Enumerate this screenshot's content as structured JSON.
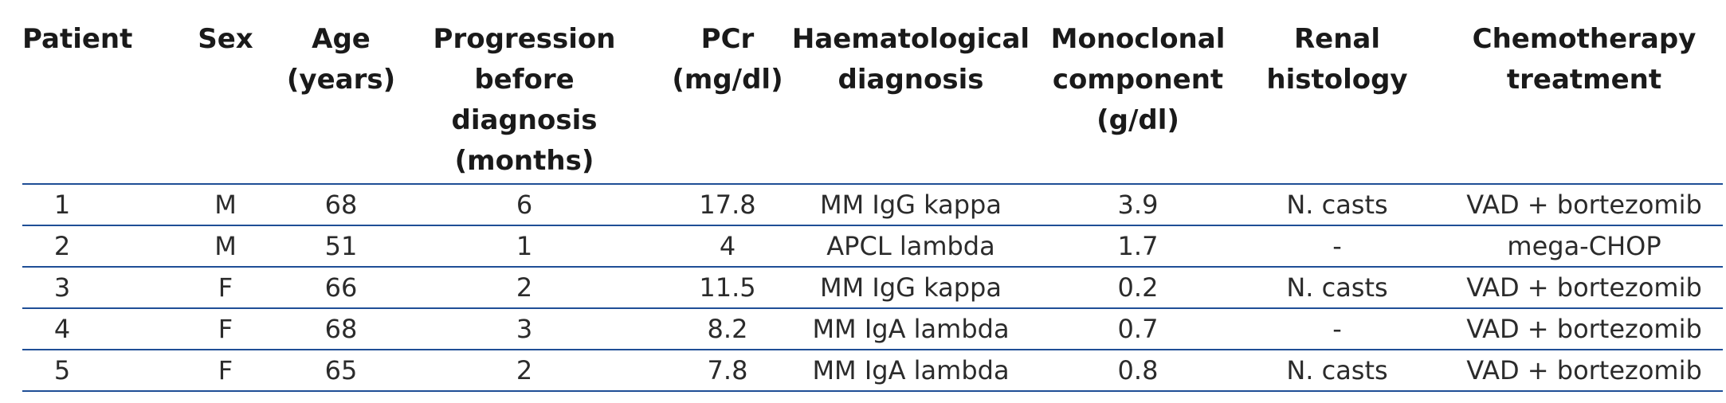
{
  "table": {
    "headers": {
      "patient": [
        "Patient"
      ],
      "sex": [
        "Sex"
      ],
      "age": [
        "Age",
        "(years)"
      ],
      "progression": [
        "Progression",
        "before",
        "diagnosis",
        "(months)"
      ],
      "pcr": [
        "PCr",
        "(mg/dl)"
      ],
      "haematological": [
        "Haematological",
        "diagnosis"
      ],
      "monoclonal": [
        "Monoclonal",
        "component",
        "(g/dl)"
      ],
      "renal": [
        "Renal",
        "histology"
      ],
      "chemotherapy": [
        "Chemotherapy",
        "treatment"
      ]
    },
    "rows": [
      {
        "patient": "1",
        "sex": "M",
        "age": "68",
        "progression": "6",
        "pcr": "17.8",
        "haematological": "MM IgG kappa",
        "monoclonal": "3.9",
        "renal": "N. casts",
        "chemotherapy": "VAD + bortezomib"
      },
      {
        "patient": "2",
        "sex": "M",
        "age": "51",
        "progression": "1",
        "pcr": "4",
        "haematological": "APCL lambda",
        "monoclonal": "1.7",
        "renal": "-",
        "chemotherapy": "mega-CHOP"
      },
      {
        "patient": "3",
        "sex": "F",
        "age": "66",
        "progression": "2",
        "pcr": "11.5",
        "haematological": "MM IgG kappa",
        "monoclonal": "0.2",
        "renal": "N. casts",
        "chemotherapy": "VAD + bortezomib"
      },
      {
        "patient": "4",
        "sex": "F",
        "age": "68",
        "progression": "3",
        "pcr": "8.2",
        "haematological": "MM IgA lambda",
        "monoclonal": "0.7",
        "renal": "-",
        "chemotherapy": "VAD + bortezomib"
      },
      {
        "patient": "5",
        "sex": "F",
        "age": "65",
        "progression": "2",
        "pcr": "7.8",
        "haematological": "MM IgA lambda",
        "monoclonal": "0.8",
        "renal": "N. casts",
        "chemotherapy": "VAD + bortezomib"
      }
    ]
  },
  "colors": {
    "rule": "#1f4e96",
    "text": "#1a1a1a"
  }
}
